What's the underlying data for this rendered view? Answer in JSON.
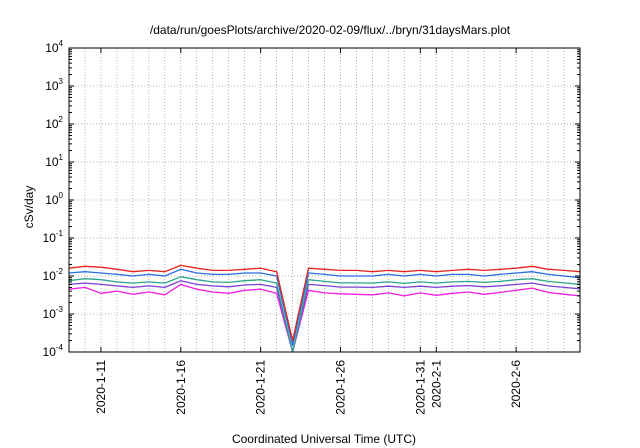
{
  "chart_data": {
    "type": "line",
    "title": "/data/run/goesPlots/archive/2020-02-09/flux/../bryn/31daysMars.plot",
    "xlabel": "Coordinated Universal Time (UTC)",
    "ylabel": "cSv/day",
    "yscale": "log",
    "ylim": [
      0.0001,
      10000
    ],
    "xlim": [
      "2020-01-09",
      "2020-02-10"
    ],
    "grid": true,
    "legend": "none",
    "x_ticks": [
      {
        "date": "2020-01-11",
        "label": "2020-1-11"
      },
      {
        "date": "2020-01-16",
        "label": "2020-1-16"
      },
      {
        "date": "2020-01-21",
        "label": "2020-1-21"
      },
      {
        "date": "2020-01-26",
        "label": "2020-1-26"
      },
      {
        "date": "2020-01-31",
        "label": "2020-1-31"
      },
      {
        "date": "2020-02-01",
        "label": "2020-2-1"
      },
      {
        "date": "2020-02-06",
        "label": "2020-2-6"
      }
    ],
    "y_ticks": [
      {
        "value": 0.0001,
        "base": "10",
        "exp": "-4"
      },
      {
        "value": 0.001,
        "base": "10",
        "exp": "-3"
      },
      {
        "value": 0.01,
        "base": "10",
        "exp": "-2"
      },
      {
        "value": 0.1,
        "base": "10",
        "exp": "-1"
      },
      {
        "value": 1,
        "base": "10",
        "exp": "0"
      },
      {
        "value": 10,
        "base": "10",
        "exp": "1"
      },
      {
        "value": 100,
        "base": "10",
        "exp": "2"
      },
      {
        "value": 1000,
        "base": "10",
        "exp": "3"
      },
      {
        "value": 10000,
        "base": "10",
        "exp": "4"
      }
    ],
    "x": [
      "2020-01-09",
      "2020-01-10",
      "2020-01-11",
      "2020-01-12",
      "2020-01-13",
      "2020-01-14",
      "2020-01-15",
      "2020-01-16",
      "2020-01-17",
      "2020-01-18",
      "2020-01-19",
      "2020-01-20",
      "2020-01-21",
      "2020-01-22",
      "2020-01-23",
      "2020-01-24",
      "2020-01-25",
      "2020-01-26",
      "2020-01-27",
      "2020-01-28",
      "2020-01-29",
      "2020-01-30",
      "2020-01-31",
      "2020-02-01",
      "2020-02-02",
      "2020-02-03",
      "2020-02-04",
      "2020-02-05",
      "2020-02-06",
      "2020-02-07",
      "2020-02-08",
      "2020-02-09",
      "2020-02-10"
    ],
    "series": [
      {
        "color": "#e8231e",
        "values": [
          0.016,
          0.018,
          0.017,
          0.015,
          0.013,
          0.014,
          0.013,
          0.019,
          0.016,
          0.014,
          0.014,
          0.015,
          0.016,
          0.013,
          0.0002,
          0.016,
          0.015,
          0.014,
          0.014,
          0.013,
          0.014,
          0.013,
          0.014,
          0.013,
          0.014,
          0.015,
          0.014,
          0.015,
          0.016,
          0.018,
          0.015,
          0.014,
          0.013
        ]
      },
      {
        "color": "#2b6fe0",
        "values": [
          0.012,
          0.013,
          0.012,
          0.011,
          0.01,
          0.011,
          0.01,
          0.015,
          0.012,
          0.011,
          0.011,
          0.012,
          0.012,
          0.01,
          0.00015,
          0.012,
          0.011,
          0.01,
          0.01,
          0.01,
          0.011,
          0.01,
          0.011,
          0.01,
          0.011,
          0.011,
          0.01,
          0.011,
          0.012,
          0.013,
          0.011,
          0.01,
          0.009
        ]
      },
      {
        "color": "#2aa68c",
        "values": [
          0.0075,
          0.0085,
          0.008,
          0.007,
          0.0065,
          0.007,
          0.0065,
          0.0095,
          0.008,
          0.007,
          0.0068,
          0.0075,
          0.008,
          0.0065,
          0.0001,
          0.008,
          0.0072,
          0.0066,
          0.0066,
          0.0065,
          0.007,
          0.0064,
          0.007,
          0.0065,
          0.007,
          0.0072,
          0.0068,
          0.0072,
          0.008,
          0.0085,
          0.0072,
          0.0066,
          0.006
        ]
      },
      {
        "color": "#7a3fd6",
        "values": [
          0.006,
          0.0065,
          0.006,
          0.0055,
          0.005,
          0.0055,
          0.005,
          0.0075,
          0.006,
          0.0055,
          0.0052,
          0.0058,
          0.006,
          0.005,
          0.0001,
          0.006,
          0.0056,
          0.0051,
          0.0051,
          0.005,
          0.0054,
          0.005,
          0.0054,
          0.005,
          0.0054,
          0.0056,
          0.0052,
          0.0055,
          0.006,
          0.0065,
          0.0055,
          0.005,
          0.0046
        ]
      },
      {
        "color": "#ee1fe0",
        "values": [
          0.0045,
          0.005,
          0.0035,
          0.004,
          0.0033,
          0.0038,
          0.0032,
          0.006,
          0.0045,
          0.0038,
          0.0035,
          0.0042,
          0.0045,
          0.0035,
          0.0001,
          0.0042,
          0.0036,
          0.0034,
          0.0033,
          0.0032,
          0.0036,
          0.003,
          0.0036,
          0.0031,
          0.0035,
          0.0038,
          0.0033,
          0.0037,
          0.0042,
          0.0048,
          0.0037,
          0.0033,
          0.003
        ]
      }
    ]
  }
}
